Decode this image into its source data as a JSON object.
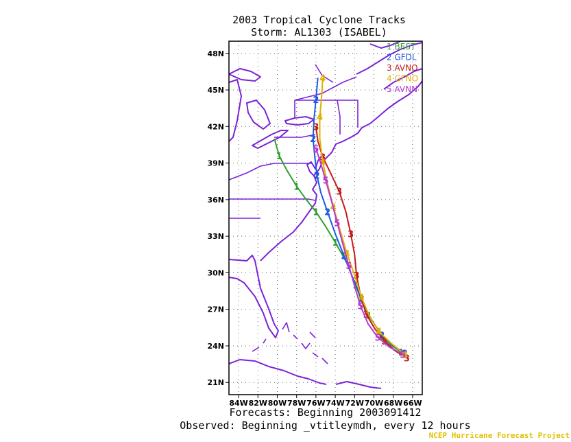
{
  "title_line1": "2003 Tropical Cyclone Tracks",
  "title_line2": "Storm: AL1303 (ISABEL)",
  "footer_line1": "Forecasts: Beginning 2003091412",
  "footer_line2": "Observed: Beginning _vtitleymdh, every 12 hours",
  "credit": "NCEP Hurricane Forecast Project",
  "map": {
    "lon_range": [
      -85,
      -65
    ],
    "lat_range": [
      20,
      49
    ],
    "lon_ticks": [
      {
        "v": -84,
        "label": "84W"
      },
      {
        "v": -82,
        "label": "82W"
      },
      {
        "v": -80,
        "label": "80W"
      },
      {
        "v": -78,
        "label": "78W"
      },
      {
        "v": -76,
        "label": "76W"
      },
      {
        "v": -74,
        "label": "74W"
      },
      {
        "v": -72,
        "label": "72W"
      },
      {
        "v": -70,
        "label": "70W"
      },
      {
        "v": -68,
        "label": "68W"
      },
      {
        "v": -66,
        "label": "66W"
      }
    ],
    "lat_ticks": [
      {
        "v": 21,
        "label": "21N"
      },
      {
        "v": 24,
        "label": "24N"
      },
      {
        "v": 27,
        "label": "27N"
      },
      {
        "v": 30,
        "label": "30N"
      },
      {
        "v": 33,
        "label": "33N"
      },
      {
        "v": 36,
        "label": "36N"
      },
      {
        "v": 39,
        "label": "39N"
      },
      {
        "v": 42,
        "label": "42N"
      },
      {
        "v": 45,
        "label": "45N"
      },
      {
        "v": 48,
        "label": "48N"
      }
    ],
    "grid": "dotted",
    "coast_color": "#7b22d8"
  },
  "legend": [
    {
      "num": "1",
      "name": "BEST",
      "color": "#2ea02e"
    },
    {
      "num": "2",
      "name": "GFDL",
      "color": "#1a5ae0"
    },
    {
      "num": "3",
      "name": "AVNO",
      "color": "#c21a1a"
    },
    {
      "num": "4",
      "name": "GFNO",
      "color": "#e0b000"
    },
    {
      "num": "5",
      "name": "AVNN",
      "color": "#b43ad4"
    }
  ],
  "chart_data": {
    "type": "line",
    "x_label": "longitude",
    "y_label": "latitude",
    "series": [
      {
        "name": "BEST",
        "points": [
          [
            -67.2,
            23.5
          ],
          [
            -68.3,
            24.1
          ],
          [
            -69.1,
            24.8
          ],
          [
            -69.8,
            25.6
          ],
          [
            -70.5,
            26.5
          ],
          [
            -71.2,
            27.5
          ],
          [
            -71.9,
            29.0
          ],
          [
            -72.8,
            30.8
          ],
          [
            -74.0,
            32.5
          ],
          [
            -75.0,
            33.8
          ],
          [
            -76.0,
            35.0
          ],
          [
            -77.0,
            36.0
          ],
          [
            -78.0,
            37.1
          ],
          [
            -79.0,
            38.4
          ],
          [
            -79.8,
            39.6
          ],
          [
            -80.3,
            41.0
          ]
        ]
      },
      {
        "name": "GFDL",
        "points": [
          [
            -66.8,
            23.4
          ],
          [
            -68.0,
            24.0
          ],
          [
            -69.2,
            24.9
          ],
          [
            -70.4,
            26.3
          ],
          [
            -71.3,
            27.9
          ],
          [
            -72.2,
            29.6
          ],
          [
            -73.1,
            31.4
          ],
          [
            -74.0,
            33.2
          ],
          [
            -74.8,
            35.0
          ],
          [
            -75.5,
            36.6
          ],
          [
            -75.9,
            38.0
          ],
          [
            -76.1,
            39.4
          ],
          [
            -76.3,
            41.0
          ],
          [
            -76.2,
            42.6
          ],
          [
            -76.0,
            44.2
          ],
          [
            -75.8,
            46.0
          ]
        ]
      },
      {
        "name": "AVNO",
        "points": [
          [
            -66.6,
            23.0
          ],
          [
            -67.8,
            23.6
          ],
          [
            -68.9,
            24.4
          ],
          [
            -69.9,
            25.4
          ],
          [
            -70.8,
            26.6
          ],
          [
            -71.4,
            28.2
          ],
          [
            -71.8,
            29.8
          ],
          [
            -72.0,
            31.5
          ],
          [
            -72.4,
            33.2
          ],
          [
            -72.9,
            35.0
          ],
          [
            -73.6,
            36.7
          ],
          [
            -74.5,
            38.2
          ],
          [
            -75.3,
            39.5
          ],
          [
            -75.8,
            40.8
          ],
          [
            -76.0,
            42.0
          ]
        ]
      },
      {
        "name": "GFNO",
        "points": [
          [
            -66.8,
            23.3
          ],
          [
            -68.2,
            24.2
          ],
          [
            -69.5,
            25.2
          ],
          [
            -70.5,
            26.5
          ],
          [
            -71.3,
            28.0
          ],
          [
            -72.0,
            29.8
          ],
          [
            -72.8,
            31.6
          ],
          [
            -73.5,
            33.5
          ],
          [
            -74.2,
            35.4
          ],
          [
            -74.8,
            37.3
          ],
          [
            -75.3,
            39.1
          ],
          [
            -75.6,
            41.0
          ],
          [
            -75.6,
            42.8
          ],
          [
            -75.4,
            44.6
          ],
          [
            -75.3,
            46.0
          ]
        ]
      },
      {
        "name": "AVNN",
        "points": [
          [
            -67.0,
            23.3
          ],
          [
            -68.4,
            23.9
          ],
          [
            -69.6,
            24.7
          ],
          [
            -70.6,
            25.8
          ],
          [
            -71.4,
            27.3
          ],
          [
            -72.0,
            28.9
          ],
          [
            -72.6,
            30.6
          ],
          [
            -73.2,
            32.3
          ],
          [
            -73.8,
            34.1
          ],
          [
            -74.4,
            35.9
          ],
          [
            -75.0,
            37.6
          ],
          [
            -75.5,
            39.0
          ],
          [
            -76.0,
            40.2
          ]
        ]
      }
    ]
  }
}
